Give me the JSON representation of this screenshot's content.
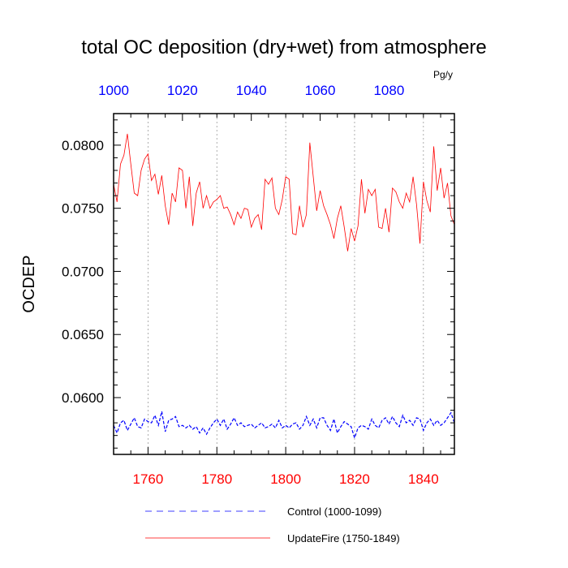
{
  "chart_data": {
    "type": "line",
    "title": "total OC deposition (dry+wet) from atmosphere",
    "ylabel": "OCDEP",
    "units": "Pg/y",
    "ylim": [
      0.0555,
      0.0825
    ],
    "yticks": [
      0.06,
      0.065,
      0.07,
      0.075,
      0.08
    ],
    "ytick_labels": [
      "0.0600",
      "0.0650",
      "0.0700",
      "0.0750",
      "0.0800"
    ],
    "bottom_axis": {
      "range": [
        1750,
        1849
      ],
      "ticks": [
        1760,
        1780,
        1800,
        1820,
        1840
      ],
      "tick_labels": [
        "1760",
        "1780",
        "1800",
        "1820",
        "1840"
      ],
      "color": "#ff0000"
    },
    "top_axis": {
      "range": [
        1000,
        1099
      ],
      "ticks": [
        1000,
        1020,
        1040,
        1060,
        1080
      ],
      "tick_labels": [
        "1000",
        "1020",
        "1040",
        "1060",
        "1080"
      ],
      "color": "#0000ff"
    },
    "vertical_gridlines_at_bottom_axis": [
      1760,
      1780,
      1800,
      1820,
      1840
    ],
    "legend_placement": "bottom",
    "series": [
      {
        "name": "Control (1000-1099)",
        "axis": "top",
        "color": "#0000ff",
        "dash": "dashed",
        "x_start": 1000,
        "values": [
          0.0578,
          0.0572,
          0.058,
          0.0582,
          0.0574,
          0.0579,
          0.0584,
          0.0577,
          0.0576,
          0.0583,
          0.0581,
          0.058,
          0.0586,
          0.0578,
          0.0589,
          0.0573,
          0.0582,
          0.0583,
          0.0585,
          0.0577,
          0.0578,
          0.0576,
          0.0578,
          0.0575,
          0.0577,
          0.0572,
          0.0576,
          0.0571,
          0.0576,
          0.058,
          0.0583,
          0.0578,
          0.0583,
          0.0575,
          0.0579,
          0.0584,
          0.0578,
          0.058,
          0.0577,
          0.0578,
          0.0579,
          0.0576,
          0.0578,
          0.058,
          0.0576,
          0.0577,
          0.0579,
          0.0576,
          0.0582,
          0.0576,
          0.0578,
          0.0576,
          0.0579,
          0.058,
          0.0575,
          0.0578,
          0.0585,
          0.0578,
          0.0583,
          0.0576,
          0.0584,
          0.0584,
          0.0578,
          0.0574,
          0.0583,
          0.0572,
          0.0577,
          0.0581,
          0.0579,
          0.0577,
          0.0568,
          0.0576,
          0.0578,
          0.0577,
          0.0575,
          0.0583,
          0.0578,
          0.0576,
          0.0582,
          0.0584,
          0.0579,
          0.0585,
          0.058,
          0.0577,
          0.0586,
          0.058,
          0.0582,
          0.0578,
          0.0584,
          0.0583,
          0.0574,
          0.058,
          0.0583,
          0.0578,
          0.0582,
          0.0578,
          0.058,
          0.0584,
          0.0588,
          0.058
        ]
      },
      {
        "name": "UpdateFire (1750-1849)",
        "axis": "bottom",
        "color": "#ff0000",
        "dash": "solid",
        "x_start": 1750,
        "values": [
          0.0769,
          0.0755,
          0.0785,
          0.0792,
          0.0809,
          0.0785,
          0.0762,
          0.076,
          0.078,
          0.0789,
          0.0793,
          0.0772,
          0.0777,
          0.0761,
          0.0776,
          0.0752,
          0.0737,
          0.0762,
          0.0755,
          0.0782,
          0.078,
          0.075,
          0.0775,
          0.0736,
          0.0762,
          0.0771,
          0.075,
          0.076,
          0.075,
          0.0755,
          0.0757,
          0.076,
          0.075,
          0.0751,
          0.0745,
          0.0737,
          0.0747,
          0.0742,
          0.075,
          0.0749,
          0.0735,
          0.0742,
          0.0745,
          0.0733,
          0.0773,
          0.0769,
          0.0774,
          0.075,
          0.0745,
          0.0757,
          0.0775,
          0.0773,
          0.073,
          0.0729,
          0.0752,
          0.0735,
          0.0745,
          0.0802,
          0.0775,
          0.0748,
          0.0764,
          0.0752,
          0.0745,
          0.0737,
          0.0726,
          0.0742,
          0.0752,
          0.0735,
          0.0716,
          0.0734,
          0.0724,
          0.0736,
          0.0773,
          0.0746,
          0.0765,
          0.076,
          0.0765,
          0.0735,
          0.0734,
          0.075,
          0.0731,
          0.0766,
          0.0763,
          0.0755,
          0.075,
          0.0762,
          0.0755,
          0.0775,
          0.0753,
          0.0722,
          0.0771,
          0.0756,
          0.0747,
          0.0799,
          0.0764,
          0.0782,
          0.0758,
          0.077,
          0.0744,
          0.0737
        ]
      }
    ]
  }
}
